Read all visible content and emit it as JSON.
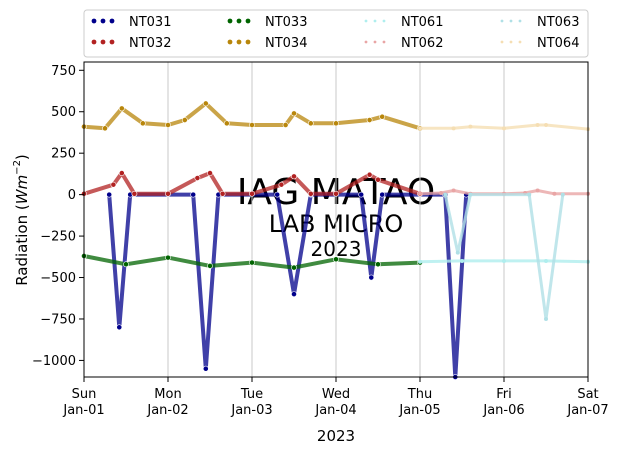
{
  "chart_data": {
    "type": "scatter",
    "title": "",
    "xlabel": "2023",
    "ylabel_main": "Radiation (",
    "ylabel_italic": "Wm",
    "ylabel_sup": "−2",
    "ylabel_end": ")",
    "ylim": [
      -1100,
      800
    ],
    "yticks": [
      750,
      500,
      250,
      0,
      -250,
      -500,
      -750,
      -1000
    ],
    "ytick_labels": [
      "750",
      "500",
      "250",
      "0",
      "−250",
      "−500",
      "−750",
      "−1000"
    ],
    "x_days": [
      0,
      1,
      2,
      3,
      4,
      5,
      6
    ],
    "xticks": [
      {
        "day": "Sun",
        "date": "Jan-01"
      },
      {
        "day": "Mon",
        "date": "Jan-02"
      },
      {
        "day": "Tue",
        "date": "Jan-03"
      },
      {
        "day": "Wed",
        "date": "Jan-04"
      },
      {
        "day": "Thu",
        "date": "Jan-05"
      },
      {
        "day": "Fri",
        "date": "Jan-06"
      },
      {
        "day": "Sat",
        "date": "Jan-07"
      }
    ],
    "grid": "vertical",
    "legend_position": "top (outside, 4 columns)",
    "watermark": [
      "IAG MATAO",
      "LAB MICRO",
      "2023"
    ],
    "series": [
      {
        "name": "NT031",
        "color": "#00008b",
        "marker": "point",
        "x": [
          0.3,
          0.42,
          0.55,
          1.3,
          1.45,
          1.6,
          2.3,
          2.5,
          2.7,
          3.3,
          3.42,
          3.55,
          4.3,
          4.42,
          4.55
        ],
        "y": [
          0,
          -800,
          0,
          0,
          -1050,
          0,
          0,
          -600,
          0,
          0,
          -500,
          0,
          0,
          -1100,
          0
        ]
      },
      {
        "name": "NT032",
        "color": "#b22222",
        "marker": "point",
        "x": [
          0.0,
          0.35,
          0.45,
          0.6,
          1.0,
          1.35,
          1.5,
          1.65,
          2.0,
          2.35,
          2.5,
          2.7,
          3.0,
          3.4,
          3.5,
          4.0
        ],
        "y": [
          5,
          60,
          130,
          5,
          5,
          100,
          130,
          5,
          5,
          60,
          110,
          5,
          5,
          120,
          90,
          5
        ]
      },
      {
        "name": "NT033",
        "color": "#006400",
        "marker": "point",
        "x": [
          0.0,
          0.5,
          1.0,
          1.5,
          2.0,
          2.5,
          3.0,
          3.5,
          4.0
        ],
        "y": [
          -370,
          -420,
          -380,
          -430,
          -410,
          -440,
          -390,
          -420,
          -410
        ]
      },
      {
        "name": "NT034",
        "color": "#b8860b",
        "marker": "point",
        "x": [
          0.0,
          0.25,
          0.45,
          0.7,
          1.0,
          1.2,
          1.45,
          1.7,
          2.0,
          2.4,
          2.5,
          2.7,
          3.0,
          3.4,
          3.55,
          4.0
        ],
        "y": [
          410,
          400,
          520,
          430,
          420,
          450,
          550,
          430,
          420,
          420,
          490,
          430,
          430,
          450,
          470,
          400
        ]
      },
      {
        "name": "NT061",
        "color": "#afeeee",
        "marker": "point",
        "x": [
          4.0,
          4.5,
          5.0,
          5.5,
          6.0
        ],
        "y": [
          -405,
          -400,
          -400,
          -400,
          -405
        ]
      },
      {
        "name": "NT062",
        "color": "#e9a5a5",
        "marker": "point",
        "x": [
          4.0,
          4.25,
          4.4,
          4.6,
          5.0,
          5.25,
          5.4,
          5.6,
          6.0
        ],
        "y": [
          5,
          10,
          25,
          5,
          5,
          10,
          25,
          5,
          5
        ]
      },
      {
        "name": "NT063",
        "color": "#b0e0e6",
        "marker": "point",
        "x": [
          4.3,
          4.45,
          4.6,
          5.3,
          5.5,
          5.7
        ],
        "y": [
          0,
          -350,
          0,
          0,
          -750,
          0
        ]
      },
      {
        "name": "NT064",
        "color": "#f5deb3",
        "marker": "point",
        "x": [
          4.0,
          4.4,
          4.6,
          5.0,
          5.4,
          5.5,
          6.0
        ],
        "y": [
          400,
          400,
          410,
          400,
          420,
          420,
          395
        ]
      }
    ]
  }
}
